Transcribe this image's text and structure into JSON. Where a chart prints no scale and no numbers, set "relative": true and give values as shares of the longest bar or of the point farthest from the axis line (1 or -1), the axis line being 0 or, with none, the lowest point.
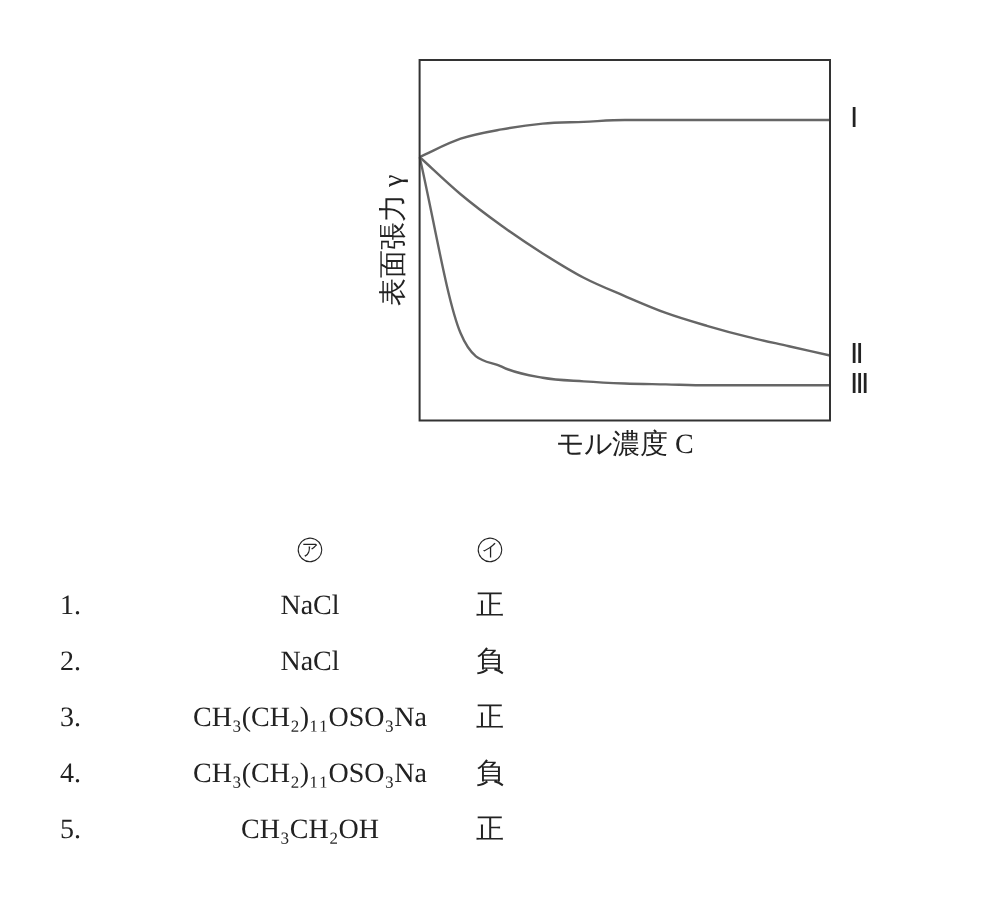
{
  "chart_data": {
    "type": "line",
    "relative": true,
    "xlabel": "モル濃度 C",
    "ylabel": "表面張力 γ",
    "categories": [
      null,
      null,
      null,
      null,
      null,
      null,
      null,
      null,
      null,
      null,
      null
    ],
    "legend": false,
    "marker": "none",
    "grid": false,
    "tick_labels": false,
    "series": [
      {
        "name": "Ⅰ",
        "color": "#666666",
        "values": [
          0.877,
          0.938,
          0.969,
          0.988,
          0.994,
          1,
          1,
          1,
          1,
          1,
          1
        ]
      },
      {
        "name": "Ⅱ",
        "color": "#666666",
        "values": [
          0.877,
          0.753,
          0.648,
          0.556,
          0.475,
          0.414,
          0.358,
          0.315,
          0.278,
          0.247,
          0.216
        ]
      },
      {
        "name": "Ⅲ",
        "color": "#666666",
        "values": [
          0.877,
          0.29,
          0.179,
          0.142,
          0.13,
          0.123,
          0.12,
          0.117,
          0.117,
          0.117,
          0.117
        ]
      }
    ],
    "annotations": [
      "㋐",
      "㋑",
      "1.",
      "NaCl",
      "正",
      "2.",
      "NaCl",
      "負",
      "3.",
      "CH₃(CH₂)₁₁OSO₃Na",
      "正",
      "4.",
      "CH₃(CH₂)₁₁OSO₃Na",
      "負",
      "5.",
      "CH₃CH₂OH",
      "正"
    ]
  }
}
